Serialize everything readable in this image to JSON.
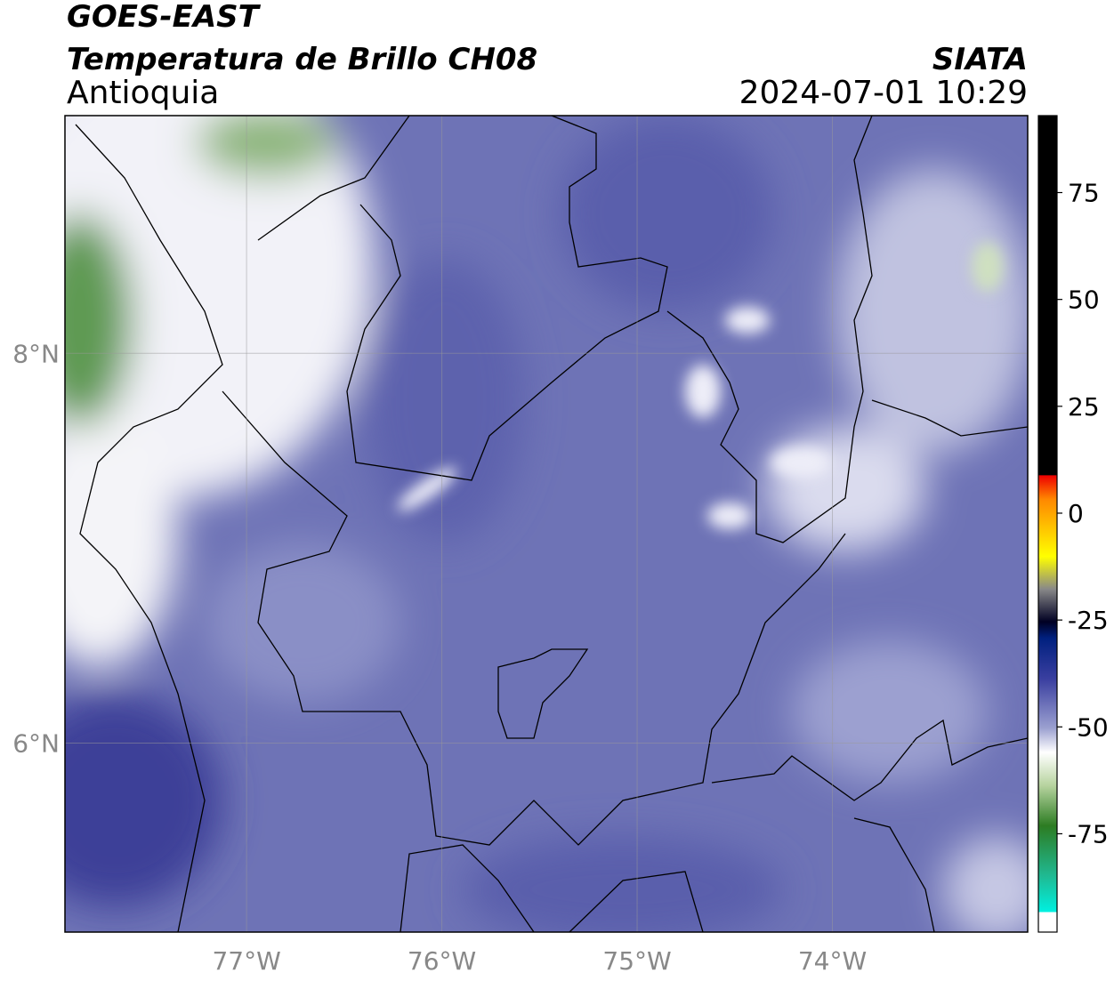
{
  "header": {
    "title": "GOES-EAST",
    "subtitle": "Temperatura de Brillo CH08",
    "region": "Antioquia",
    "source": "SIATA",
    "datetime": "2024-07-01 10:29"
  },
  "map": {
    "xlim": [
      -77.93,
      -73.0
    ],
    "ylim": [
      5.03,
      9.22
    ],
    "xticks": [
      {
        "value": -77,
        "label": "77°W"
      },
      {
        "value": -76,
        "label": "76°W"
      },
      {
        "value": -75,
        "label": "75°W"
      },
      {
        "value": -74,
        "label": "74°W"
      }
    ],
    "yticks": [
      {
        "value": 8,
        "label": "8°N"
      },
      {
        "value": 6,
        "label": "6°N"
      }
    ],
    "grid": true
  },
  "colorbar": {
    "lim": [
      -98,
      93
    ],
    "ticks": [
      75,
      50,
      25,
      0,
      -25,
      -50,
      -75
    ]
  }
}
